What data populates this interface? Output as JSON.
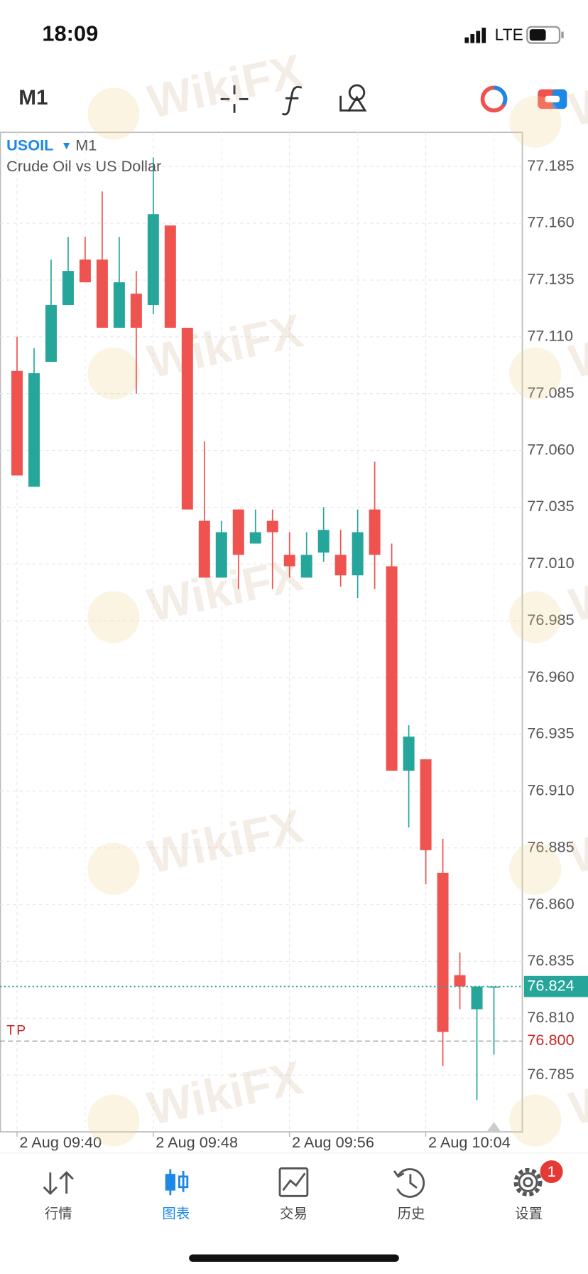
{
  "status_bar": {
    "time": "18:09",
    "network": "LTE"
  },
  "toolbar": {
    "timeframe": "M1"
  },
  "chart_data": {
    "type": "candlestick",
    "symbol": "USOIL",
    "timeframe": "M1",
    "subtitle": "Crude Oil vs US Dollar",
    "watermark": "WikiFX",
    "categories": [
      "2 Aug 09:40",
      null,
      null,
      null,
      null,
      null,
      null,
      null,
      "2 Aug 09:48",
      null,
      null,
      null,
      null,
      null,
      null,
      null,
      "2 Aug 09:56",
      null,
      null,
      null,
      null,
      null,
      null,
      null,
      "2 Aug 10:04",
      null,
      null,
      null,
      null
    ],
    "open": [
      77.095,
      77.044,
      77.099,
      77.124,
      77.144,
      77.144,
      77.114,
      77.129,
      77.124,
      77.159,
      77.114,
      77.029,
      77.004,
      77.034,
      77.019,
      77.029,
      77.014,
      77.004,
      77.015,
      77.014,
      77.005,
      77.034,
      77.009,
      76.919,
      76.924,
      76.874,
      76.829,
      76.814,
      76.824
    ],
    "high": [
      77.11,
      77.105,
      77.144,
      77.154,
      77.154,
      77.174,
      77.154,
      77.139,
      77.189,
      77.159,
      77.114,
      77.064,
      77.029,
      77.034,
      77.034,
      77.034,
      77.024,
      77.024,
      77.035,
      77.025,
      77.034,
      77.055,
      77.019,
      76.939,
      76.924,
      76.889,
      76.839,
      76.824,
      76.824
    ],
    "low": [
      77.049,
      77.044,
      77.099,
      77.124,
      77.134,
      77.114,
      77.114,
      77.085,
      77.12,
      77.114,
      77.034,
      77.004,
      77.004,
      76.999,
      77.019,
      76.999,
      77.004,
      77.004,
      77.011,
      77.0,
      76.995,
      76.999,
      76.919,
      76.894,
      76.869,
      76.789,
      76.814,
      76.774,
      76.794
    ],
    "close": [
      77.049,
      77.094,
      77.124,
      77.139,
      77.134,
      77.114,
      77.134,
      77.114,
      77.164,
      77.114,
      77.034,
      77.004,
      77.024,
      77.014,
      77.024,
      77.024,
      77.009,
      77.014,
      77.025,
      77.005,
      77.024,
      77.014,
      76.919,
      76.934,
      76.884,
      76.804,
      76.824,
      76.824,
      76.824
    ],
    "up_color": "#26a69a",
    "down_color": "#ef5350",
    "ylim": [
      76.76,
      77.2
    ],
    "yticks": [
      77.185,
      {
        "value": 77.16,
        "label": "77.160"
      },
      77.135,
      {
        "value": 77.11,
        "label": "77.110"
      },
      77.085,
      {
        "value": 77.06,
        "label": "77.060"
      },
      77.035,
      {
        "value": 77.01,
        "label": "77.010"
      },
      76.985,
      {
        "value": 76.96,
        "label": "76.960"
      },
      76.935,
      {
        "value": 76.91,
        "label": "76.910"
      },
      76.885,
      {
        "value": 76.86,
        "label": "76.860"
      },
      76.835,
      {
        "value": 76.81,
        "label": "76.810"
      },
      76.785
    ],
    "grid": true,
    "price_line": {
      "value": 76.824,
      "color": "#26a69a"
    },
    "tp_line": {
      "name": "TP",
      "value": 76.8,
      "value_label": "76.800",
      "color": "#c62828"
    }
  },
  "tab_bar": {
    "tabs": [
      "行情",
      "图表",
      "交易",
      "历史",
      "设置"
    ],
    "active_tab": 1,
    "badge": 1
  }
}
